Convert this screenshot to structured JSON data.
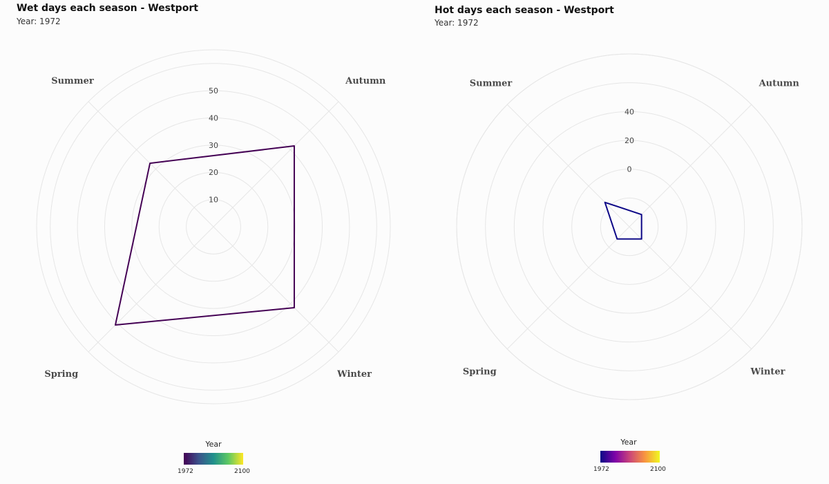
{
  "charts": [
    {
      "title": "Wet days each season - Westport",
      "subtitle": "Year: 1972",
      "legend": {
        "title": "Year",
        "min_label": "1972",
        "max_label": "2100",
        "colors": [
          "#440154",
          "#3b528b",
          "#21908c",
          "#5dc863",
          "#fde725"
        ]
      }
    },
    {
      "title": "Hot days each season - Westport",
      "subtitle": "Year: 1972",
      "legend": {
        "title": "Year",
        "min_label": "1972",
        "max_label": "2100",
        "colors": [
          "#0d0887",
          "#7e03a8",
          "#cc4778",
          "#f89540",
          "#f0f921"
        ]
      }
    }
  ],
  "chart_data": [
    {
      "type": "radar",
      "title": "Wet days each season - Westport",
      "subtitle": "Year: 1972",
      "categories": [
        "Summer",
        "Autumn",
        "Winter",
        "Spring"
      ],
      "series": [
        {
          "name": "1972",
          "values": [
            33,
            42,
            42,
            51
          ],
          "color": "#440154"
        }
      ],
      "rlim": [
        0,
        65
      ],
      "ticks": [
        10,
        20,
        30,
        40,
        50
      ],
      "grid": true,
      "legend": "bottom"
    },
    {
      "type": "radar",
      "title": "Hot days each season - Westport",
      "subtitle": "Year: 1972",
      "categories": [
        "Summer",
        "Autumn",
        "Winter",
        "Spring"
      ],
      "series": [
        {
          "name": "1972",
          "values": [
            -16,
            -28,
            -28,
            -28
          ],
          "color": "#0d0887"
        }
      ],
      "rlim": [
        -40,
        80
      ],
      "ticks": [
        0,
        20,
        40
      ],
      "grid": true,
      "legend": "bottom"
    }
  ]
}
